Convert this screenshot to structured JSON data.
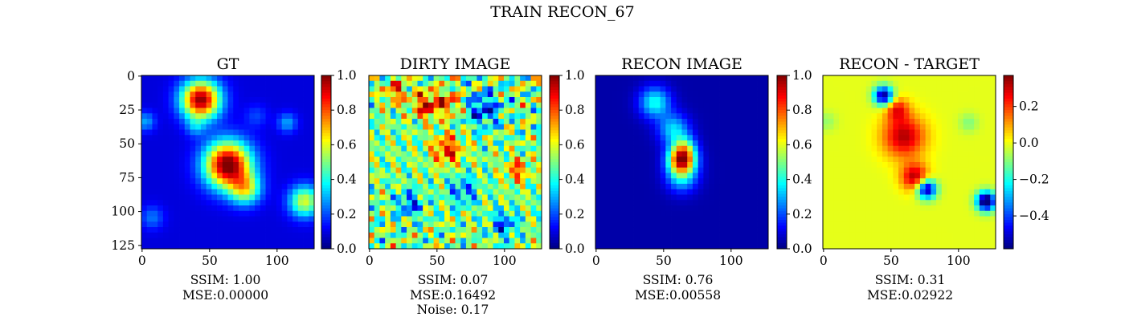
{
  "figure": {
    "suptitle": "TRAIN RECON_67"
  },
  "colormap": "jet",
  "chart_data": [
    {
      "type": "heatmap",
      "title": "GT",
      "x_ticks": [
        "0",
        "50",
        "100"
      ],
      "y_ticks": [
        "0",
        "25",
        "50",
        "75",
        "100",
        "125"
      ],
      "image_extent": [
        0,
        128
      ],
      "value_range": [
        0.0,
        1.0
      ],
      "colorbar_ticks": [
        "0.0",
        "0.2",
        "0.4",
        "0.6",
        "0.8",
        "1.0"
      ],
      "metrics": [
        "SSIM: 1.00",
        "MSE:0.00000"
      ]
    },
    {
      "type": "heatmap",
      "title": "DIRTY IMAGE",
      "x_ticks": [
        "0",
        "50",
        "100"
      ],
      "image_extent": [
        0,
        128
      ],
      "value_range": [
        0.0,
        1.0
      ],
      "colorbar_ticks": [
        "0.0",
        "0.2",
        "0.4",
        "0.6",
        "0.8",
        "1.0"
      ],
      "metrics": [
        "SSIM: 0.07",
        "MSE:0.16492",
        "Noise: 0.17"
      ]
    },
    {
      "type": "heatmap",
      "title": "RECON IMAGE",
      "x_ticks": [
        "0",
        "50",
        "100"
      ],
      "image_extent": [
        0,
        128
      ],
      "value_range": [
        0.0,
        1.0
      ],
      "colorbar_ticks": [
        "0.0",
        "0.2",
        "0.4",
        "0.6",
        "0.8",
        "1.0"
      ],
      "metrics": [
        "SSIM: 0.76",
        "MSE:0.00558"
      ]
    },
    {
      "type": "heatmap",
      "title": "RECON - TARGET",
      "x_ticks": [
        "0",
        "50",
        "100"
      ],
      "image_extent": [
        0,
        128
      ],
      "value_range": [
        -0.58,
        0.37
      ],
      "colorbar_ticks": [
        "−0.4",
        "−0.2",
        "0.0",
        "0.2"
      ],
      "colorbar_tick_values": [
        -0.4,
        -0.2,
        0.0,
        0.2
      ],
      "metrics": [
        "SSIM: 0.31",
        "MSE:0.02922"
      ]
    }
  ]
}
